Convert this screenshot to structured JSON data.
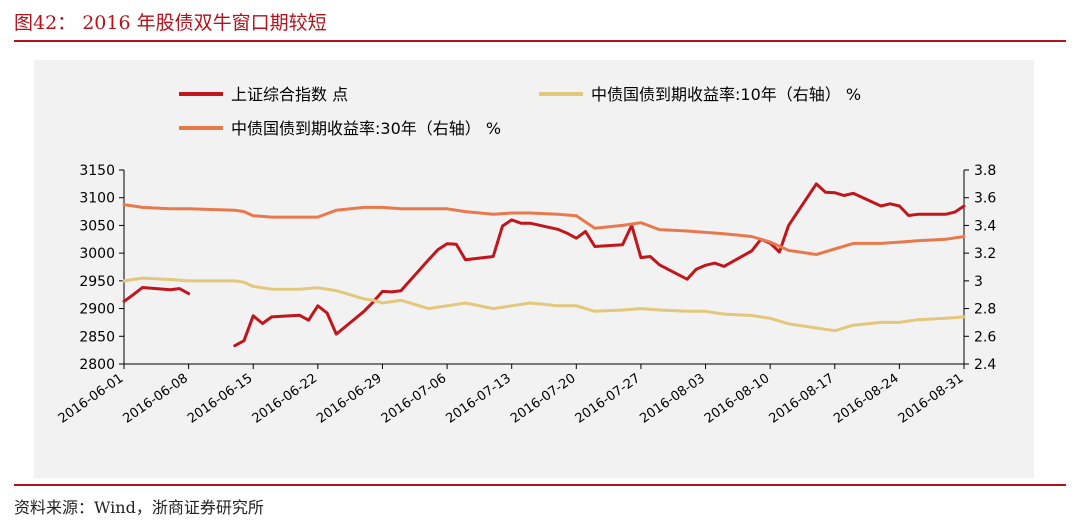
{
  "figure": {
    "title": "图42： 2016 年股债双牛窗口期较短",
    "source": "资料来源：Wind，浙商证券研究所"
  },
  "chart_data": {
    "type": "line",
    "x_ticks": [
      "2016-06-01",
      "2016-06-08",
      "2016-06-15",
      "2016-06-22",
      "2016-06-29",
      "2016-07-06",
      "2016-07-13",
      "2016-07-20",
      "2016-07-27",
      "2016-08-03",
      "2016-08-10",
      "2016-08-17",
      "2016-08-24",
      "2016-08-31"
    ],
    "x_range": [
      "2016-06-01",
      "2016-08-31"
    ],
    "y_left": {
      "min": 2800,
      "max": 3150,
      "ticks": [
        "2800",
        "2850",
        "2900",
        "2950",
        "3000",
        "3050",
        "3100",
        "3150"
      ]
    },
    "y_right": {
      "min": 2.4,
      "max": 3.8,
      "ticks": [
        "2.4",
        "2.6",
        "2.8",
        "3",
        "3.2",
        "3.4",
        "3.6",
        "3.8"
      ]
    },
    "legend_position": "top-left",
    "grid": false,
    "series": [
      {
        "name": "上证综合指数 点",
        "axis": "left",
        "color": "#c0161c",
        "points": [
          [
            "2016-06-01",
            2913
          ],
          [
            "2016-06-02",
            2925
          ],
          [
            "2016-06-03",
            2938
          ],
          [
            "2016-06-06",
            2934
          ],
          [
            "2016-06-07",
            2936
          ],
          [
            "2016-06-08",
            2927
          ],
          [
            "2016-06-13",
            2833
          ],
          [
            "2016-06-14",
            2842
          ],
          [
            "2016-06-15",
            2887
          ],
          [
            "2016-06-16",
            2873
          ],
          [
            "2016-06-17",
            2885
          ],
          [
            "2016-06-20",
            2888
          ],
          [
            "2016-06-21",
            2879
          ],
          [
            "2016-06-22",
            2905
          ],
          [
            "2016-06-23",
            2892
          ],
          [
            "2016-06-24",
            2854
          ],
          [
            "2016-06-27",
            2895
          ],
          [
            "2016-06-28",
            2912
          ],
          [
            "2016-06-29",
            2931
          ],
          [
            "2016-06-30",
            2930
          ],
          [
            "2016-07-01",
            2932
          ],
          [
            "2016-07-04",
            2988
          ],
          [
            "2016-07-05",
            3006
          ],
          [
            "2016-07-06",
            3017
          ],
          [
            "2016-07-07",
            3016
          ],
          [
            "2016-07-08",
            2988
          ],
          [
            "2016-07-11",
            2994
          ],
          [
            "2016-07-12",
            3049
          ],
          [
            "2016-07-13",
            3060
          ],
          [
            "2016-07-14",
            3054
          ],
          [
            "2016-07-15",
            3054
          ],
          [
            "2016-07-18",
            3043
          ],
          [
            "2016-07-19",
            3036
          ],
          [
            "2016-07-20",
            3027
          ],
          [
            "2016-07-21",
            3039
          ],
          [
            "2016-07-22",
            3012
          ],
          [
            "2016-07-25",
            3015
          ],
          [
            "2016-07-26",
            3050
          ],
          [
            "2016-07-27",
            2992
          ],
          [
            "2016-07-28",
            2994
          ],
          [
            "2016-07-29",
            2979
          ],
          [
            "2016-08-01",
            2953
          ],
          [
            "2016-08-02",
            2971
          ],
          [
            "2016-08-03",
            2978
          ],
          [
            "2016-08-04",
            2982
          ],
          [
            "2016-08-05",
            2976
          ],
          [
            "2016-08-08",
            3004
          ],
          [
            "2016-08-09",
            3025
          ],
          [
            "2016-08-10",
            3018
          ],
          [
            "2016-08-11",
            3002
          ],
          [
            "2016-08-12",
            3050
          ],
          [
            "2016-08-15",
            3125
          ],
          [
            "2016-08-16",
            3110
          ],
          [
            "2016-08-17",
            3109
          ],
          [
            "2016-08-18",
            3104
          ],
          [
            "2016-08-19",
            3108
          ],
          [
            "2016-08-22",
            3085
          ],
          [
            "2016-08-23",
            3089
          ],
          [
            "2016-08-24",
            3085
          ],
          [
            "2016-08-25",
            3068
          ],
          [
            "2016-08-26",
            3070
          ],
          [
            "2016-08-29",
            3070
          ],
          [
            "2016-08-30",
            3074
          ],
          [
            "2016-08-31",
            3085
          ]
        ]
      },
      {
        "name": "中债国债到期收益率:10年（右轴） %",
        "axis": "right",
        "color": "#e3c77a",
        "points": [
          [
            "2016-06-01",
            3.0
          ],
          [
            "2016-06-03",
            3.02
          ],
          [
            "2016-06-06",
            3.01
          ],
          [
            "2016-06-08",
            3.0
          ],
          [
            "2016-06-13",
            3.0
          ],
          [
            "2016-06-14",
            2.99
          ],
          [
            "2016-06-15",
            2.96
          ],
          [
            "2016-06-17",
            2.94
          ],
          [
            "2016-06-20",
            2.94
          ],
          [
            "2016-06-22",
            2.95
          ],
          [
            "2016-06-24",
            2.93
          ],
          [
            "2016-06-27",
            2.87
          ],
          [
            "2016-06-28",
            2.86
          ],
          [
            "2016-06-29",
            2.84
          ],
          [
            "2016-07-01",
            2.86
          ],
          [
            "2016-07-04",
            2.8
          ],
          [
            "2016-07-06",
            2.82
          ],
          [
            "2016-07-08",
            2.84
          ],
          [
            "2016-07-11",
            2.8
          ],
          [
            "2016-07-13",
            2.82
          ],
          [
            "2016-07-15",
            2.84
          ],
          [
            "2016-07-18",
            2.82
          ],
          [
            "2016-07-20",
            2.82
          ],
          [
            "2016-07-22",
            2.78
          ],
          [
            "2016-07-25",
            2.79
          ],
          [
            "2016-07-27",
            2.8
          ],
          [
            "2016-07-29",
            2.79
          ],
          [
            "2016-08-01",
            2.78
          ],
          [
            "2016-08-03",
            2.78
          ],
          [
            "2016-08-05",
            2.76
          ],
          [
            "2016-08-08",
            2.75
          ],
          [
            "2016-08-10",
            2.73
          ],
          [
            "2016-08-12",
            2.69
          ],
          [
            "2016-08-15",
            2.66
          ],
          [
            "2016-08-17",
            2.64
          ],
          [
            "2016-08-19",
            2.68
          ],
          [
            "2016-08-22",
            2.7
          ],
          [
            "2016-08-24",
            2.7
          ],
          [
            "2016-08-26",
            2.72
          ],
          [
            "2016-08-29",
            2.73
          ],
          [
            "2016-08-31",
            2.74
          ]
        ]
      },
      {
        "name": "中债国债到期收益率:30年（右轴） %",
        "axis": "right",
        "color": "#e8794d",
        "points": [
          [
            "2016-06-01",
            3.55
          ],
          [
            "2016-06-03",
            3.53
          ],
          [
            "2016-06-06",
            3.52
          ],
          [
            "2016-06-08",
            3.52
          ],
          [
            "2016-06-13",
            3.51
          ],
          [
            "2016-06-14",
            3.5
          ],
          [
            "2016-06-15",
            3.47
          ],
          [
            "2016-06-17",
            3.46
          ],
          [
            "2016-06-20",
            3.46
          ],
          [
            "2016-06-22",
            3.46
          ],
          [
            "2016-06-24",
            3.51
          ],
          [
            "2016-06-27",
            3.53
          ],
          [
            "2016-06-29",
            3.53
          ],
          [
            "2016-07-01",
            3.52
          ],
          [
            "2016-07-04",
            3.52
          ],
          [
            "2016-07-06",
            3.52
          ],
          [
            "2016-07-08",
            3.5
          ],
          [
            "2016-07-11",
            3.48
          ],
          [
            "2016-07-13",
            3.49
          ],
          [
            "2016-07-15",
            3.49
          ],
          [
            "2016-07-18",
            3.48
          ],
          [
            "2016-07-20",
            3.47
          ],
          [
            "2016-07-22",
            3.38
          ],
          [
            "2016-07-25",
            3.4
          ],
          [
            "2016-07-27",
            3.42
          ],
          [
            "2016-07-29",
            3.37
          ],
          [
            "2016-08-01",
            3.36
          ],
          [
            "2016-08-03",
            3.35
          ],
          [
            "2016-08-05",
            3.34
          ],
          [
            "2016-08-08",
            3.32
          ],
          [
            "2016-08-10",
            3.28
          ],
          [
            "2016-08-12",
            3.22
          ],
          [
            "2016-08-15",
            3.19
          ],
          [
            "2016-08-17",
            3.23
          ],
          [
            "2016-08-19",
            3.27
          ],
          [
            "2016-08-22",
            3.27
          ],
          [
            "2016-08-24",
            3.28
          ],
          [
            "2016-08-26",
            3.29
          ],
          [
            "2016-08-29",
            3.3
          ],
          [
            "2016-08-31",
            3.32
          ]
        ]
      }
    ]
  }
}
